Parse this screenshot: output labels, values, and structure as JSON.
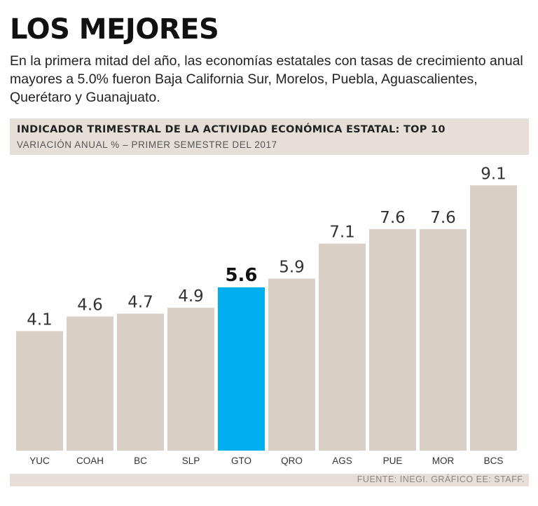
{
  "headline": "LOS MEJORES",
  "intro": "En la primera mitad del año, las economías estatales con  tasas de crecimiento anual mayores a 5.0% fueron Baja California Sur, Morelos, Puebla, Aguascalientes, Querétaro y Guanajuato.",
  "source": "FUENTE: INEGI. GRÁFICO EE: STAFF.",
  "chart_data": {
    "type": "bar",
    "title": "INDICADOR TRIMESTRAL DE LA ACTIVIDAD ECONÓMICA ESTATAL: TOP 10",
    "subtitle": "VARIACIÓN ANUAL % – PRIMER SEMESTRE DEL 2017",
    "categories": [
      "YUC",
      "COAH",
      "BC",
      "SLP",
      "GTO",
      "QRO",
      "AGS",
      "PUE",
      "MOR",
      "BCS"
    ],
    "values": [
      4.1,
      4.6,
      4.7,
      4.9,
      5.6,
      5.9,
      7.1,
      7.6,
      7.6,
      9.1
    ],
    "value_labels": [
      "4.1",
      "4.6",
      "4.7",
      "4.9",
      "5.6",
      "5.9",
      "7.1",
      "7.6",
      "7.6",
      "9.1"
    ],
    "highlight_category": "GTO",
    "colors": {
      "bar": "#d9cfc4",
      "highlight": "#00aeef",
      "label": "#333333",
      "tick": "#333333"
    },
    "grid": false,
    "xlabel": "",
    "ylabel": ""
  }
}
